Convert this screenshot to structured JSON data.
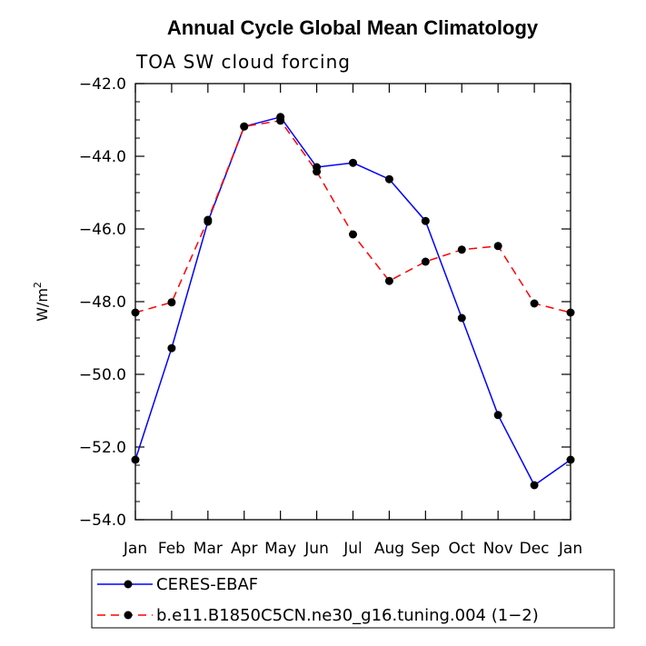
{
  "chart_data": {
    "type": "line",
    "title": "Annual Cycle Global Mean Climatology",
    "subtitle": "TOA SW cloud forcing",
    "ylabel_base": "W/m",
    "ylabel_sup": "2",
    "xlabel": "",
    "ylim": [
      -54.0,
      -42.0
    ],
    "yticks": [
      -42.0,
      -44.0,
      -46.0,
      -48.0,
      -50.0,
      -52.0,
      -54.0
    ],
    "yticklabels": [
      "−42.0",
      "−44.0",
      "−46.0",
      "−48.0",
      "−50.0",
      "−52.0",
      "−54.0"
    ],
    "categories": [
      "Jan",
      "Feb",
      "Mar",
      "Apr",
      "May",
      "Jun",
      "Jul",
      "Aug",
      "Sep",
      "Oct",
      "Nov",
      "Dec",
      "Jan"
    ],
    "series": [
      {
        "name": "CERES-EBAF",
        "color": "#0000ff",
        "dash": "solid",
        "values": [
          -52.35,
          -49.28,
          -45.8,
          -43.18,
          -42.92,
          -44.3,
          -44.18,
          -44.63,
          -45.78,
          -48.45,
          -51.12,
          -53.05,
          -52.35
        ]
      },
      {
        "name": "b.e11.B1850C5CN.ne30_g16.tuning.004 (1−2)",
        "color": "#ff0000",
        "dash": "dashed",
        "values": [
          -48.3,
          -48.02,
          -45.75,
          -43.18,
          -43.02,
          -44.42,
          -46.15,
          -47.43,
          -46.9,
          -46.57,
          -46.47,
          -48.05,
          -48.3
        ]
      }
    ]
  }
}
